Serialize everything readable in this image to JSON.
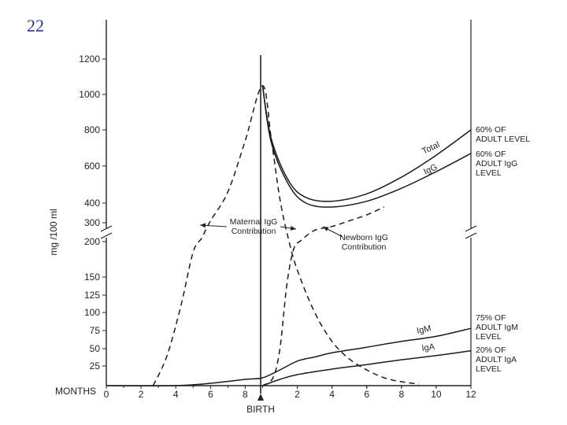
{
  "slide_number": "22",
  "chart_data": {
    "type": "line",
    "ylabel": "mg /100 ml",
    "x_axis": {
      "label": "MONTHS",
      "marker_label": "BIRTH",
      "prenatal_ticks": [
        "0",
        "2",
        "4",
        "6",
        "8"
      ],
      "postnatal_ticks": [
        "2",
        "4",
        "6",
        "8",
        "10",
        "12"
      ]
    },
    "y_axis": {
      "upper_ticks": [
        200,
        300,
        400,
        600,
        800,
        1000,
        1200
      ],
      "lower_ticks": [
        25,
        50,
        75,
        100,
        125,
        150,
        200
      ],
      "break_between": [
        200,
        300
      ]
    },
    "series": [
      {
        "name": "Total",
        "style": "solid",
        "points": [
          [
            9,
            1050
          ],
          [
            9.5,
            750
          ],
          [
            10.5,
            520
          ],
          [
            11.5,
            430
          ],
          [
            13,
            410
          ],
          [
            15,
            450
          ],
          [
            17,
            540
          ],
          [
            19,
            660
          ],
          [
            21,
            800
          ]
        ]
      },
      {
        "name": "IgG",
        "style": "solid",
        "points": [
          [
            9,
            1050
          ],
          [
            9.5,
            730
          ],
          [
            10.5,
            500
          ],
          [
            11.5,
            400
          ],
          [
            13,
            380
          ],
          [
            15,
            410
          ],
          [
            17,
            480
          ],
          [
            19,
            570
          ],
          [
            21,
            670
          ]
        ]
      },
      {
        "name": "IgM",
        "style": "solid",
        "points": [
          [
            0,
            0
          ],
          [
            4,
            0
          ],
          [
            6,
            3
          ],
          [
            8,
            8
          ],
          [
            9,
            10
          ],
          [
            10,
            20
          ],
          [
            11,
            32
          ],
          [
            12,
            38
          ],
          [
            13,
            44
          ],
          [
            15,
            52
          ],
          [
            17,
            60
          ],
          [
            19,
            67
          ],
          [
            21,
            78
          ]
        ]
      },
      {
        "name": "IgA",
        "style": "solid",
        "points": [
          [
            9,
            0
          ],
          [
            10,
            8
          ],
          [
            11,
            14
          ],
          [
            13,
            21
          ],
          [
            15,
            27
          ],
          [
            17,
            34
          ],
          [
            19,
            40
          ],
          [
            21,
            47
          ]
        ]
      },
      {
        "name": "Maternal IgG Contribution",
        "style": "dashed",
        "points": [
          [
            2.7,
            0
          ],
          [
            3.5,
            40
          ],
          [
            4.3,
            110
          ],
          [
            5,
            185
          ],
          [
            5.5,
            220
          ],
          [
            6,
            310
          ],
          [
            7,
            460
          ],
          [
            8,
            740
          ],
          [
            9,
            1050
          ],
          [
            9.5,
            750
          ],
          [
            10,
            420
          ],
          [
            10.5,
            210
          ],
          [
            11,
            160
          ],
          [
            12,
            100
          ],
          [
            13,
            60
          ],
          [
            14,
            35
          ],
          [
            15,
            20
          ],
          [
            16,
            10
          ],
          [
            17,
            5
          ],
          [
            18,
            2
          ]
        ]
      },
      {
        "name": "Newborn IgG Contribution",
        "style": "dashed",
        "points": [
          [
            9,
            0
          ],
          [
            9.6,
            10
          ],
          [
            10,
            50
          ],
          [
            10.4,
            140
          ],
          [
            10.8,
            190
          ],
          [
            11.2,
            205
          ],
          [
            12,
            260
          ],
          [
            13,
            280
          ],
          [
            14,
            310
          ],
          [
            15,
            340
          ],
          [
            16,
            380
          ]
        ]
      }
    ],
    "annotations": {
      "maternal": [
        "Maternal IgG",
        "Contribution"
      ],
      "newborn": [
        "Newborn IgG",
        "Contribution"
      ],
      "total_end": [
        "60% OF",
        "ADULT LEVEL"
      ],
      "igg_end": [
        "60% OF",
        "ADULT IgG",
        "LEVEL"
      ],
      "igm_end": [
        "75% OF",
        "ADULT IgM",
        "LEVEL"
      ],
      "iga_end": [
        "20% OF",
        "ADULT IgA",
        "LEVEL"
      ]
    }
  }
}
